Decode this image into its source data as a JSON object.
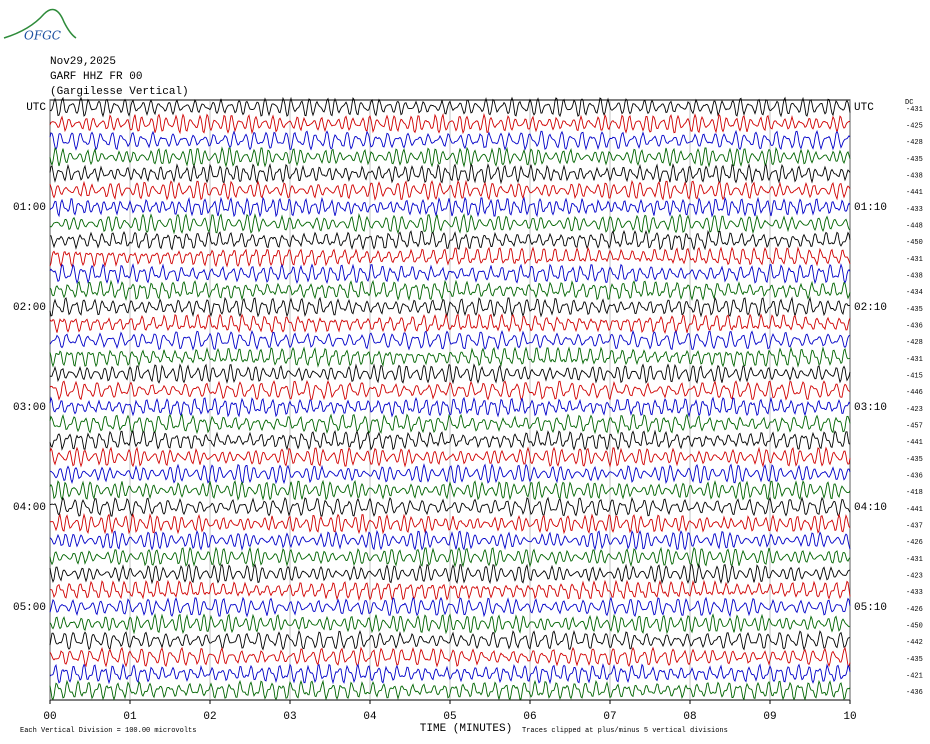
{
  "chart_data": {
    "type": "helicorder",
    "logo": "OFGC",
    "title_lines": [
      "Nov29,2025",
      "GARF HHZ FR 00",
      "(Gargilesse Vertical)"
    ],
    "left_labels": [
      "UTC",
      "01:00",
      "02:00",
      "03:00",
      "04:00",
      "05:00"
    ],
    "right_labels": [
      "UTC",
      "01:10",
      "02:10",
      "03:10",
      "04:10",
      "05:10"
    ],
    "dc_label": "DC",
    "offsets": [
      -431,
      -425,
      -428,
      -435,
      -438,
      -441,
      -433,
      -448,
      -450,
      -431,
      -438,
      -434,
      -435,
      -436,
      -428,
      -431,
      -415,
      -446,
      -423,
      -457,
      -441,
      -435,
      -436,
      -418,
      -441,
      -437,
      -426,
      -431,
      -423,
      -433,
      -426,
      -450,
      -442,
      -435,
      -421,
      -436
    ],
    "trace_colors": [
      "#000000",
      "#d00000",
      "#0000c8",
      "#006400"
    ],
    "xlim": [
      0,
      10
    ],
    "xticks": [
      {
        "value": 0,
        "label": "00"
      },
      {
        "value": 1,
        "label": "01"
      },
      {
        "value": 2,
        "label": "02"
      },
      {
        "value": 3,
        "label": "03"
      },
      {
        "value": 4,
        "label": "04"
      },
      {
        "value": 5,
        "label": "05"
      },
      {
        "value": 6,
        "label": "06"
      },
      {
        "value": 7,
        "label": "07"
      },
      {
        "value": 8,
        "label": "08"
      },
      {
        "value": 9,
        "label": "09"
      },
      {
        "value": 10,
        "label": "10"
      }
    ],
    "xlabel": "TIME (MINUTES)",
    "grid": true,
    "scale_note": "Each Vertical Division =  100.00 microvolts",
    "clip_note": "Traces clipped at plus/minus 5 vertical divisions"
  }
}
